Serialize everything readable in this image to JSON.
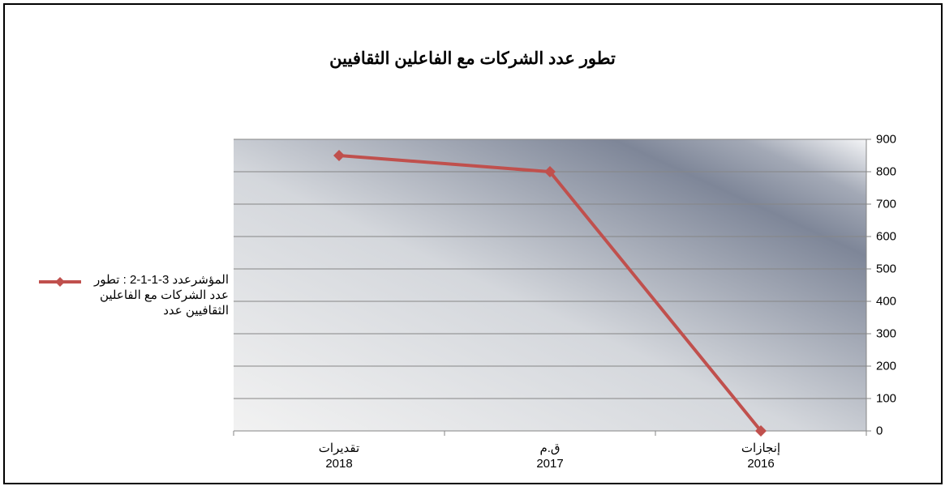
{
  "chart_data": {
    "type": "line",
    "title": "تطور عدد الشركات مع الفاعلين الثقافيين",
    "categories": [
      "إنجازات\n2016",
      "ق.م\n2017",
      "تقديرات\n2018"
    ],
    "x_reversed": true,
    "series": [
      {
        "name": "المؤشرعدد 3-1-1-2 : تطور عدد الشركات مع الفاعلين الثقافيين  عدد",
        "color": "#c0504d",
        "values": [
          0,
          800,
          850
        ]
      }
    ],
    "ylim": [
      0,
      900
    ],
    "yticks": [
      0,
      100,
      200,
      300,
      400,
      500,
      600,
      700,
      800,
      900
    ],
    "y_axis_side": "right",
    "grid": true,
    "legend": "left"
  }
}
